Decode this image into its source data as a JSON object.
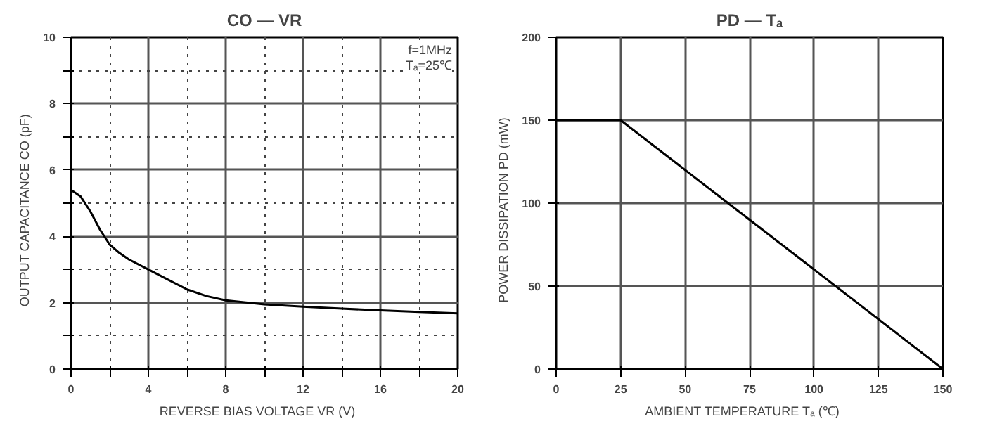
{
  "chart_data": [
    {
      "type": "line",
      "title": "CO — VR",
      "xlabel": "REVERSE BIAS VOLTAGE   VR   (V)",
      "ylabel": "OUTPUT CAPACITANCE   CO   (pF)",
      "x": [
        0,
        0.5,
        1,
        1.5,
        2,
        2.5,
        3,
        4,
        5,
        6,
        7,
        8,
        10,
        12,
        14,
        16,
        18,
        20
      ],
      "series": [
        {
          "color": "#000000",
          "values": [
            5.4,
            5.2,
            4.75,
            4.2,
            3.75,
            3.5,
            3.3,
            3.0,
            2.7,
            2.4,
            2.2,
            2.07,
            1.95,
            1.88,
            1.82,
            1.77,
            1.72,
            1.68
          ]
        }
      ],
      "xlim": [
        0,
        20
      ],
      "ylim": [
        0,
        10
      ],
      "xticks": [
        0,
        {
          "value": 2,
          "label": null
        },
        4,
        {
          "value": 6,
          "label": null
        },
        8,
        {
          "value": 10,
          "label": null
        },
        12,
        {
          "value": 14,
          "label": null
        },
        16,
        {
          "value": 18,
          "label": null
        },
        20
      ],
      "yticks": [
        0,
        {
          "value": 1,
          "label": null
        },
        2,
        {
          "value": 3,
          "label": null
        },
        4,
        {
          "value": 5,
          "label": null
        },
        6,
        {
          "value": 7,
          "label": null
        },
        8,
        {
          "value": 9,
          "label": null
        },
        10
      ],
      "grid": true,
      "marker": "none",
      "line_style": "solid",
      "annotations": [
        "f=1MHz",
        "Tₐ=25℃"
      ]
    },
    {
      "type": "line",
      "title": "PD — Tₐ",
      "xlabel": "AMBIENT TEMPERATURE   Tₐ   (℃)",
      "ylabel": "POWER DISSIPATION   PD   (mW)",
      "x": [
        0,
        25,
        150
      ],
      "series": [
        {
          "color": "#000000",
          "values": [
            150,
            150,
            0
          ]
        }
      ],
      "xlim": [
        0,
        150
      ],
      "ylim": [
        0,
        200
      ],
      "xticks": [
        0,
        25,
        50,
        75,
        100,
        125,
        150
      ],
      "yticks": [
        0,
        50,
        100,
        150,
        200
      ],
      "grid": true,
      "marker": "none",
      "line_style": "solid"
    }
  ]
}
